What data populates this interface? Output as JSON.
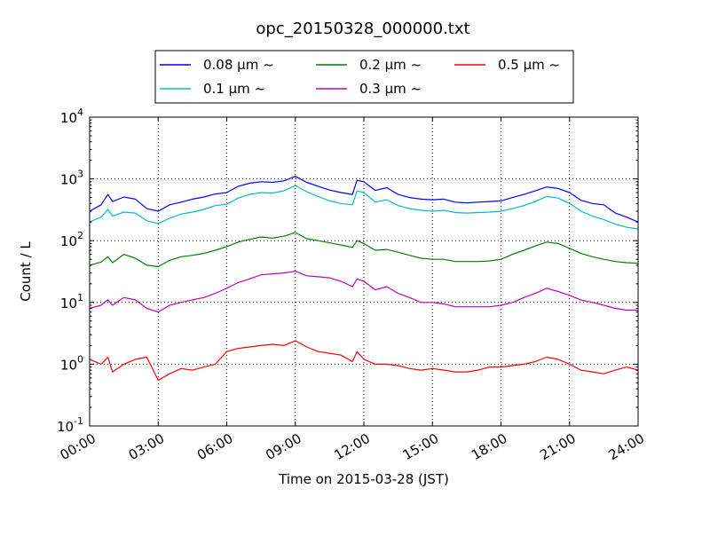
{
  "chart_data": {
    "type": "line",
    "title": "opc_20150328_000000.txt",
    "xlabel": "Time on 2015-03-28 (JST)",
    "ylabel": "Count / L",
    "xlim": [
      0,
      24
    ],
    "ylim": [
      0.1,
      10000
    ],
    "yscale": "log",
    "grid": true,
    "legend_placement": "top-center",
    "x_ticks": [
      0,
      3,
      6,
      9,
      12,
      15,
      18,
      21,
      24
    ],
    "x_tick_labels": [
      "00:00",
      "03:00",
      "06:00",
      "09:00",
      "12:00",
      "15:00",
      "18:00",
      "21:00",
      "24:00"
    ],
    "y_ticks": [
      0.1,
      1,
      10,
      100,
      1000,
      10000
    ],
    "y_tick_exponents": [
      "-1",
      "0",
      "1",
      "2",
      "3",
      "4"
    ],
    "y_tick_base": "10",
    "x": [
      0,
      0.5,
      0.8,
      1.0,
      1.5,
      2.0,
      2.5,
      3.0,
      3.5,
      4.0,
      4.5,
      5.0,
      5.5,
      6.0,
      6.5,
      7.0,
      7.5,
      8.0,
      8.5,
      9.0,
      9.5,
      10.0,
      10.5,
      11.0,
      11.5,
      11.7,
      12.0,
      12.5,
      13.0,
      13.5,
      14.0,
      14.5,
      15.0,
      15.5,
      16.0,
      16.5,
      17.0,
      17.5,
      18.0,
      18.5,
      19.0,
      19.5,
      20.0,
      20.5,
      21.0,
      21.5,
      22.0,
      22.5,
      23.0,
      23.5,
      24.0
    ],
    "series": [
      {
        "name": "0.08 μm ~",
        "color": "#0000ff",
        "values": [
          300,
          380,
          560,
          430,
          510,
          470,
          330,
          300,
          380,
          420,
          470,
          510,
          570,
          600,
          760,
          850,
          900,
          880,
          930,
          1100,
          880,
          760,
          660,
          600,
          560,
          950,
          900,
          650,
          720,
          560,
          500,
          470,
          460,
          470,
          420,
          410,
          420,
          430,
          440,
          500,
          560,
          640,
          740,
          700,
          600,
          450,
          400,
          380,
          280,
          240,
          200
        ]
      },
      {
        "name": "0.1 μm ~",
        "color": "#00bfbf",
        "values": [
          200,
          240,
          320,
          250,
          290,
          280,
          210,
          190,
          230,
          270,
          290,
          320,
          370,
          390,
          490,
          560,
          600,
          590,
          640,
          780,
          620,
          520,
          440,
          400,
          380,
          640,
          600,
          420,
          460,
          370,
          330,
          310,
          300,
          310,
          285,
          280,
          285,
          290,
          300,
          330,
          370,
          430,
          520,
          490,
          400,
          300,
          250,
          220,
          185,
          165,
          155
        ]
      },
      {
        "name": "0.2 μm ~",
        "color": "#008000",
        "values": [
          40,
          45,
          55,
          44,
          60,
          52,
          40,
          38,
          48,
          55,
          58,
          62,
          70,
          80,
          95,
          105,
          115,
          110,
          118,
          135,
          108,
          100,
          92,
          85,
          78,
          100,
          90,
          70,
          72,
          65,
          58,
          52,
          50,
          50,
          46,
          46,
          46,
          47,
          50,
          60,
          70,
          82,
          95,
          90,
          75,
          62,
          55,
          50,
          46,
          44,
          43
        ]
      },
      {
        "name": "0.3 μm ~",
        "color": "#bf00bf",
        "values": [
          8,
          9,
          11,
          9,
          12,
          11,
          8,
          7,
          9,
          10,
          11,
          12,
          14,
          17,
          21,
          24,
          28,
          29,
          30,
          32,
          27,
          26,
          25,
          22,
          18,
          24,
          22,
          16,
          18,
          14,
          12,
          10,
          10,
          9.5,
          8.5,
          8.5,
          8.5,
          8.5,
          9,
          10,
          12,
          14,
          17,
          15,
          13,
          11,
          10,
          9,
          8,
          7.5,
          7.5
        ]
      },
      {
        "name": "0.5 μm ~",
        "color": "#ff0000",
        "values": [
          1.2,
          1.0,
          1.3,
          0.75,
          1.0,
          1.2,
          1.3,
          0.55,
          0.7,
          0.85,
          0.8,
          0.9,
          1.0,
          1.6,
          1.8,
          1.9,
          2.0,
          2.1,
          2.0,
          2.4,
          1.9,
          1.6,
          1.5,
          1.4,
          1.1,
          1.6,
          1.2,
          1.0,
          1.0,
          0.95,
          0.85,
          0.8,
          0.85,
          0.8,
          0.75,
          0.75,
          0.8,
          0.9,
          0.9,
          0.95,
          1.0,
          1.1,
          1.3,
          1.2,
          1.0,
          0.8,
          0.75,
          0.7,
          0.8,
          0.9,
          0.8
        ]
      }
    ]
  }
}
